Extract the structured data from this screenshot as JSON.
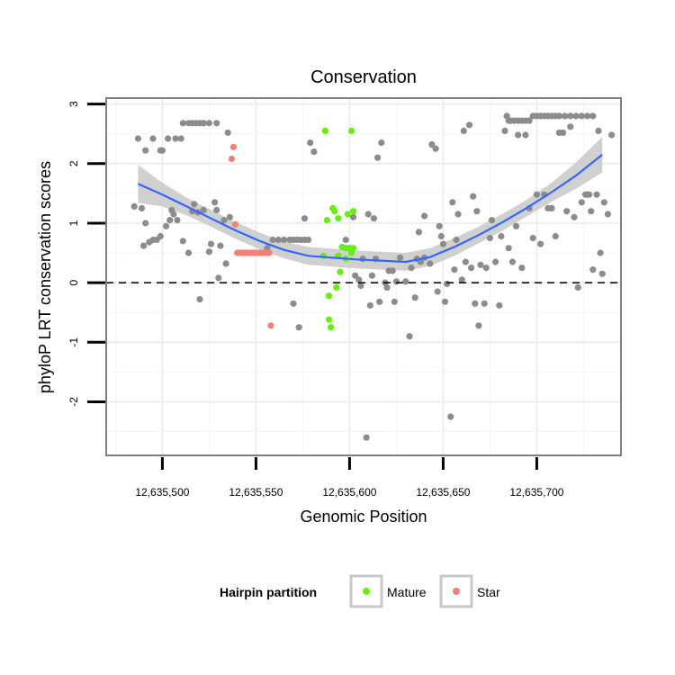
{
  "chart_data": {
    "type": "scatter",
    "title": "Conservation",
    "xlabel": "Genomic Position",
    "ylabel": "phyloP LRT conservation scores",
    "xlim": [
      12635470,
      12635745
    ],
    "ylim": [
      -2.9,
      3.1
    ],
    "x_ticks": [
      12635500,
      12635550,
      12635600,
      12635650,
      12635700
    ],
    "x_tick_labels": [
      "12,635,500",
      "12,635,550",
      "12,635,600",
      "12,635,650",
      "12,635,700"
    ],
    "y_ticks": [
      -2,
      -1,
      0,
      1,
      2,
      3
    ],
    "y_tick_labels": [
      "-2",
      "-1",
      "0",
      "1",
      "2",
      "3"
    ],
    "reference_line": {
      "y": 0,
      "style": "dashed"
    },
    "grid": true,
    "legend": {
      "title": "Hairpin partition",
      "position": "bottom",
      "entries": [
        {
          "label": "Mature",
          "color": "#66ee11"
        },
        {
          "label": "Star",
          "color": "#f08078"
        }
      ]
    },
    "colors": {
      "other": "#8c8c8c",
      "mature": "#66ee11",
      "star": "#f08078",
      "smooth": "#3366ff",
      "band": "#c8c8c8"
    },
    "series": [
      {
        "group": "other",
        "points": [
          [
            12635487,
            2.42
          ],
          [
            12635489,
            1.25
          ],
          [
            12635491,
            2.22
          ],
          [
            12635495,
            2.42
          ],
          [
            12635499,
            2.22
          ],
          [
            12635500,
            2.22
          ],
          [
            12635503,
            2.42
          ],
          [
            12635507,
            2.42
          ],
          [
            12635510,
            2.42
          ],
          [
            12635511,
            2.68
          ],
          [
            12635514,
            2.68
          ],
          [
            12635516,
            2.68
          ],
          [
            12635518,
            2.68
          ],
          [
            12635520,
            2.68
          ],
          [
            12635522,
            2.68
          ],
          [
            12635525,
            2.68
          ],
          [
            12635529,
            2.68
          ],
          [
            12635535,
            2.52
          ],
          [
            12635485,
            1.28
          ],
          [
            12635490,
            0.62
          ],
          [
            12635491,
            1.0
          ],
          [
            12635493,
            0.68
          ],
          [
            12635495,
            0.72
          ],
          [
            12635497,
            0.72
          ],
          [
            12635499,
            0.78
          ],
          [
            12635502,
            0.95
          ],
          [
            12635504,
            1.05
          ],
          [
            12635505,
            1.22
          ],
          [
            12635506,
            1.15
          ],
          [
            12635508,
            1.05
          ],
          [
            12635511,
            0.7
          ],
          [
            12635514,
            0.5
          ],
          [
            12635516,
            1.2
          ],
          [
            12635517,
            1.32
          ],
          [
            12635519,
            1.18
          ],
          [
            12635522,
            1.22
          ],
          [
            12635525,
            0.52
          ],
          [
            12635526,
            0.65
          ],
          [
            12635528,
            1.35
          ],
          [
            12635529,
            1.22
          ],
          [
            12635530,
            0.08
          ],
          [
            12635531,
            0.62
          ],
          [
            12635533,
            1.05
          ],
          [
            12635534,
            0.32
          ],
          [
            12635536,
            1.1
          ],
          [
            12635520,
            -0.28
          ],
          [
            12635552,
            0.5
          ],
          [
            12635556,
            0.58
          ],
          [
            12635559,
            0.72
          ],
          [
            12635562,
            0.72
          ],
          [
            12635565,
            0.72
          ],
          [
            12635568,
            0.72
          ],
          [
            12635570,
            0.72
          ],
          [
            12635572,
            0.72
          ],
          [
            12635574,
            0.72
          ],
          [
            12635576,
            0.72
          ],
          [
            12635578,
            0.72
          ],
          [
            12635570,
            -0.35
          ],
          [
            12635573,
            -0.75
          ],
          [
            12635576,
            1.08
          ],
          [
            12635579,
            2.35
          ],
          [
            12635581,
            2.2
          ],
          [
            12635598,
            0.72
          ],
          [
            12635600,
            0.58
          ],
          [
            12635602,
            1.1
          ],
          [
            12635603,
            0.12
          ],
          [
            12635605,
            0.05
          ],
          [
            12635606,
            -0.05
          ],
          [
            12635607,
            0.4
          ],
          [
            12635609,
            -2.6
          ],
          [
            12635610,
            1.15
          ],
          [
            12635611,
            -0.38
          ],
          [
            12635612,
            0.12
          ],
          [
            12635613,
            1.08
          ],
          [
            12635614,
            0.4
          ],
          [
            12635615,
            2.1
          ],
          [
            12635616,
            -0.32
          ],
          [
            12635617,
            2.35
          ],
          [
            12635619,
            0.0
          ],
          [
            12635620,
            -0.08
          ],
          [
            12635621,
            0.2
          ],
          [
            12635623,
            0.2
          ],
          [
            12635624,
            -0.32
          ],
          [
            12635625,
            0.02
          ],
          [
            12635627,
            0.42
          ],
          [
            12635630,
            0.02
          ],
          [
            12635632,
            -0.9
          ],
          [
            12635633,
            0.25
          ],
          [
            12635635,
            -0.25
          ],
          [
            12635636,
            0.4
          ],
          [
            12635637,
            0.85
          ],
          [
            12635638,
            0.35
          ],
          [
            12635640,
            1.12
          ],
          [
            12635640,
            0.42
          ],
          [
            12635643,
            0.32
          ],
          [
            12635644,
            2.32
          ],
          [
            12635646,
            2.25
          ],
          [
            12635647,
            -0.15
          ],
          [
            12635648,
            0.95
          ],
          [
            12635649,
            0.78
          ],
          [
            12635650,
            0.65
          ],
          [
            12635651,
            -0.32
          ],
          [
            12635652,
            -0.02
          ],
          [
            12635654,
            -2.25
          ],
          [
            12635655,
            1.35
          ],
          [
            12635656,
            0.22
          ],
          [
            12635657,
            0.72
          ],
          [
            12635658,
            1.15
          ],
          [
            12635660,
            0.05
          ],
          [
            12635661,
            2.55
          ],
          [
            12635662,
            0.35
          ],
          [
            12635664,
            2.65
          ],
          [
            12635665,
            0.25
          ],
          [
            12635666,
            1.45
          ],
          [
            12635667,
            -0.35
          ],
          [
            12635668,
            1.2
          ],
          [
            12635669,
            -0.72
          ],
          [
            12635670,
            0.3
          ],
          [
            12635672,
            -0.35
          ],
          [
            12635673,
            0.25
          ],
          [
            12635675,
            0.75
          ],
          [
            12635676,
            1.05
          ],
          [
            12635678,
            0.35
          ],
          [
            12635680,
            -0.38
          ],
          [
            12635681,
            0.78
          ],
          [
            12635683,
            2.55
          ],
          [
            12635684,
            2.8
          ],
          [
            12635685,
            2.72
          ],
          [
            12635686,
            2.72
          ],
          [
            12635688,
            2.72
          ],
          [
            12635690,
            2.72
          ],
          [
            12635692,
            2.72
          ],
          [
            12635694,
            2.72
          ],
          [
            12635696,
            2.72
          ],
          [
            12635698,
            2.8
          ],
          [
            12635700,
            2.8
          ],
          [
            12635702,
            2.8
          ],
          [
            12635704,
            2.8
          ],
          [
            12635706,
            2.8
          ],
          [
            12635708,
            2.8
          ],
          [
            12635710,
            2.8
          ],
          [
            12635712,
            2.8
          ],
          [
            12635715,
            2.8
          ],
          [
            12635718,
            2.8
          ],
          [
            12635721,
            2.8
          ],
          [
            12635724,
            2.8
          ],
          [
            12635727,
            2.8
          ],
          [
            12635730,
            2.8
          ],
          [
            12635733,
            2.55
          ],
          [
            12635685,
            0.58
          ],
          [
            12635687,
            0.35
          ],
          [
            12635689,
            0.95
          ],
          [
            12635690,
            2.48
          ],
          [
            12635692,
            0.25
          ],
          [
            12635694,
            2.48
          ],
          [
            12635696,
            1.25
          ],
          [
            12635698,
            0.75
          ],
          [
            12635700,
            1.48
          ],
          [
            12635702,
            0.65
          ],
          [
            12635704,
            1.48
          ],
          [
            12635706,
            1.25
          ],
          [
            12635708,
            1.25
          ],
          [
            12635710,
            0.78
          ],
          [
            12635712,
            2.52
          ],
          [
            12635714,
            2.52
          ],
          [
            12635716,
            1.2
          ],
          [
            12635718,
            2.62
          ],
          [
            12635720,
            1.1
          ],
          [
            12635722,
            -0.08
          ],
          [
            12635724,
            1.35
          ],
          [
            12635726,
            1.48
          ],
          [
            12635727,
            1.48
          ],
          [
            12635728,
            1.48
          ],
          [
            12635729,
            1.2
          ],
          [
            12635730,
            0.22
          ],
          [
            12635732,
            1.48
          ],
          [
            12635734,
            0.5
          ],
          [
            12635735,
            0.15
          ],
          [
            12635736,
            1.35
          ],
          [
            12635738,
            1.15
          ],
          [
            12635740,
            2.48
          ]
        ]
      },
      {
        "group": "mature",
        "points": [
          [
            12635587,
            2.55
          ],
          [
            12635601,
            2.55
          ],
          [
            12635591,
            1.25
          ],
          [
            12635592,
            1.2
          ],
          [
            12635594,
            1.08
          ],
          [
            12635599,
            1.15
          ],
          [
            12635602,
            1.2
          ],
          [
            12635588,
            1.05
          ],
          [
            12635596,
            0.6
          ],
          [
            12635598,
            0.58
          ],
          [
            12635600,
            0.58
          ],
          [
            12635602,
            0.58
          ],
          [
            12635586,
            0.45
          ],
          [
            12635594,
            0.45
          ],
          [
            12635598,
            0.4
          ],
          [
            12635601,
            0.5
          ],
          [
            12635595,
            0.18
          ],
          [
            12635593,
            -0.08
          ],
          [
            12635589,
            -0.22
          ],
          [
            12635589,
            -0.62
          ],
          [
            12635590,
            -0.75
          ]
        ]
      },
      {
        "group": "star",
        "points": [
          [
            12635538,
            2.28
          ],
          [
            12635537,
            2.08
          ],
          [
            12635539,
            0.98
          ],
          [
            12635540,
            0.5
          ],
          [
            12635541,
            0.5
          ],
          [
            12635542,
            0.5
          ],
          [
            12635543,
            0.5
          ],
          [
            12635544,
            0.5
          ],
          [
            12635545,
            0.5
          ],
          [
            12635546,
            0.5
          ],
          [
            12635547,
            0.5
          ],
          [
            12635548,
            0.5
          ],
          [
            12635549,
            0.5
          ],
          [
            12635550,
            0.5
          ],
          [
            12635551,
            0.5
          ],
          [
            12635552,
            0.5
          ],
          [
            12635553,
            0.5
          ],
          [
            12635554,
            0.5
          ],
          [
            12635555,
            0.5
          ],
          [
            12635556,
            0.5
          ],
          [
            12635557,
            0.5
          ],
          [
            12635558,
            -0.72
          ]
        ]
      }
    ],
    "smooth": [
      [
        12635487,
        1.66
      ],
      [
        12635500,
        1.48
      ],
      [
        12635513,
        1.28
      ],
      [
        12635526,
        1.08
      ],
      [
        12635539,
        0.88
      ],
      [
        12635552,
        0.7
      ],
      [
        12635565,
        0.55
      ],
      [
        12635578,
        0.45
      ],
      [
        12635591,
        0.42
      ],
      [
        12635604,
        0.39
      ],
      [
        12635617,
        0.37
      ],
      [
        12635630,
        0.35
      ],
      [
        12635643,
        0.43
      ],
      [
        12635656,
        0.6
      ],
      [
        12635669,
        0.8
      ],
      [
        12635682,
        1.02
      ],
      [
        12635695,
        1.26
      ],
      [
        12635708,
        1.52
      ],
      [
        12635721,
        1.8
      ],
      [
        12635735,
        2.15
      ]
    ],
    "band_halfwidth": [
      0.32,
      0.2,
      0.15,
      0.14,
      0.14,
      0.14,
      0.14,
      0.15,
      0.15,
      0.15,
      0.15,
      0.15,
      0.15,
      0.15,
      0.14,
      0.14,
      0.14,
      0.16,
      0.22,
      0.3
    ]
  }
}
